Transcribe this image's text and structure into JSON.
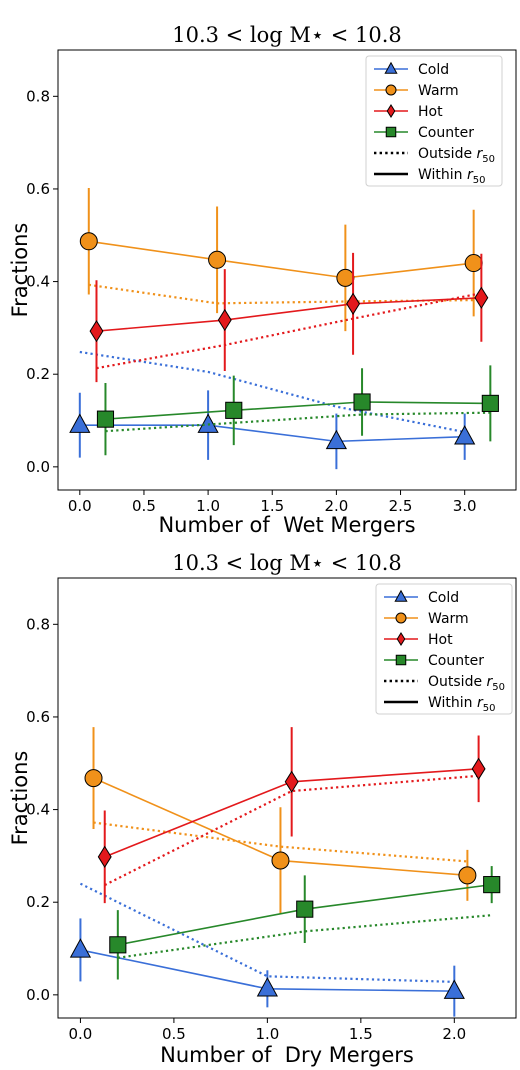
{
  "chart_data": [
    {
      "type": "line",
      "title": "10.3 < log M⋆ < 10.8",
      "xlabel": "Number of  Wet Mergers",
      "ylabel": "Fractions",
      "xlim": [
        -0.17,
        3.4
      ],
      "ylim": [
        -0.05,
        0.9
      ],
      "xticks": [
        "0.0",
        "0.5",
        "1.0",
        "1.5",
        "2.0",
        "2.5",
        "3.0"
      ],
      "yticks": [
        "0.0",
        "0.2",
        "0.4",
        "0.6",
        "0.8"
      ],
      "legend_position": "top-right",
      "legend": [
        {
          "label": "Cold",
          "color": "#3a6fd8",
          "marker": "triangle"
        },
        {
          "label": "Warm",
          "color": "#f0911a",
          "marker": "circle"
        },
        {
          "label": "Hot",
          "color": "#e3191c",
          "marker": "diamond"
        },
        {
          "label": "Counter",
          "color": "#27882a",
          "marker": "square"
        },
        {
          "label": "Outside r50",
          "style": "dotted"
        },
        {
          "label": "Within r50",
          "style": "solid"
        }
      ],
      "series": [
        {
          "name": "Cold",
          "color": "#3a6fd8",
          "marker": "triangle",
          "within": {
            "x": [
              0.0,
              1.0,
              2.0,
              3.0
            ],
            "y": [
              0.09,
              0.09,
              0.055,
              0.065
            ],
            "yerr": [
              0.07,
              0.075,
              0.06,
              0.05
            ]
          },
          "outside": {
            "x": [
              0.0,
              1.0,
              2.0,
              3.0
            ],
            "y": [
              0.248,
              0.205,
              0.13,
              0.075
            ]
          }
        },
        {
          "name": "Warm",
          "color": "#f0911a",
          "marker": "circle",
          "within": {
            "x": [
              0.07,
              1.07,
              2.07,
              3.07
            ],
            "y": [
              0.487,
              0.447,
              0.408,
              0.44
            ],
            "yerr": [
              0.115,
              0.115,
              0.115,
              0.115
            ]
          },
          "outside": {
            "x": [
              0.07,
              1.07,
              2.07,
              3.07
            ],
            "y": [
              0.393,
              0.353,
              0.357,
              0.36
            ]
          }
        },
        {
          "name": "Hot",
          "color": "#e3191c",
          "marker": "diamond",
          "within": {
            "x": [
              0.13,
              1.13,
              2.13,
              3.13
            ],
            "y": [
              0.293,
              0.317,
              0.352,
              0.365
            ],
            "yerr": [
              0.11,
              0.11,
              0.11,
              0.095
            ]
          },
          "outside": {
            "x": [
              0.13,
              1.13,
              2.13,
              3.13
            ],
            "y": [
              0.213,
              0.263,
              0.32,
              0.375
            ]
          }
        },
        {
          "name": "Counter",
          "color": "#27882a",
          "marker": "square",
          "within": {
            "x": [
              0.2,
              1.2,
              2.2,
              3.2
            ],
            "y": [
              0.103,
              0.122,
              0.14,
              0.137
            ],
            "yerr": [
              0.078,
              0.075,
              0.073,
              0.082
            ]
          },
          "outside": {
            "x": [
              0.2,
              1.2,
              2.2,
              3.2
            ],
            "y": [
              0.077,
              0.095,
              0.113,
              0.117
            ]
          }
        }
      ]
    },
    {
      "type": "line",
      "title": "10.3 < log M⋆ < 10.8",
      "xlabel": "Number of  Dry Mergers",
      "ylabel": "Fractions",
      "xlim": [
        -0.12,
        2.33
      ],
      "ylim": [
        -0.05,
        0.9
      ],
      "xticks": [
        "0.0",
        "0.5",
        "1.0",
        "1.5",
        "2.0"
      ],
      "yticks": [
        "0.0",
        "0.2",
        "0.4",
        "0.6",
        "0.8"
      ],
      "legend_position": "top-right",
      "legend": [
        {
          "label": "Cold",
          "color": "#3a6fd8",
          "marker": "triangle"
        },
        {
          "label": "Warm",
          "color": "#f0911a",
          "marker": "circle"
        },
        {
          "label": "Hot",
          "color": "#e3191c",
          "marker": "diamond"
        },
        {
          "label": "Counter",
          "color": "#27882a",
          "marker": "square"
        },
        {
          "label": "Outside r50",
          "style": "dotted"
        },
        {
          "label": "Within r50",
          "style": "solid"
        }
      ],
      "series": [
        {
          "name": "Cold",
          "color": "#3a6fd8",
          "marker": "triangle",
          "within": {
            "x": [
              0.0,
              1.0,
              2.0
            ],
            "y": [
              0.097,
              0.013,
              0.008
            ],
            "yerr": [
              0.068,
              0.04,
              0.055
            ]
          },
          "outside": {
            "x": [
              0.0,
              1.0,
              2.0
            ],
            "y": [
              0.24,
              0.04,
              0.028
            ]
          }
        },
        {
          "name": "Warm",
          "color": "#f0911a",
          "marker": "circle",
          "within": {
            "x": [
              0.07,
              1.07,
              2.07
            ],
            "y": [
              0.468,
              0.29,
              0.258
            ],
            "yerr": [
              0.11,
              0.115,
              0.055
            ]
          },
          "outside": {
            "x": [
              0.07,
              1.07,
              2.07
            ],
            "y": [
              0.372,
              0.32,
              0.288
            ]
          }
        },
        {
          "name": "Hot",
          "color": "#e3191c",
          "marker": "diamond",
          "within": {
            "x": [
              0.13,
              1.13,
              2.13
            ],
            "y": [
              0.298,
              0.46,
              0.488
            ],
            "yerr": [
              0.1,
              0.118,
              0.072
            ]
          },
          "outside": {
            "x": [
              0.13,
              1.13,
              2.13
            ],
            "y": [
              0.237,
              0.44,
              0.473
            ]
          }
        },
        {
          "name": "Counter",
          "color": "#27882a",
          "marker": "square",
          "within": {
            "x": [
              0.2,
              1.2,
              2.2
            ],
            "y": [
              0.108,
              0.185,
              0.238
            ],
            "yerr": [
              0.075,
              0.073,
              0.04
            ]
          },
          "outside": {
            "x": [
              0.2,
              1.2,
              2.2
            ],
            "y": [
              0.08,
              0.137,
              0.172
            ]
          }
        }
      ]
    }
  ]
}
